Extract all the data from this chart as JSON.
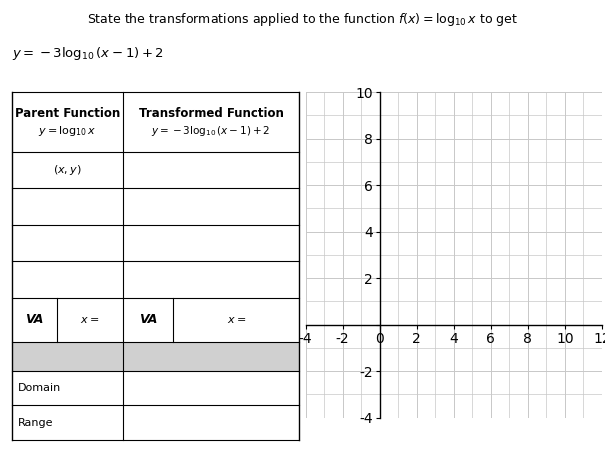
{
  "title_line1": "State the transformations applied to the function $f(x) = \\log_{10} x$ to get",
  "title_line2": "$y = -3\\log_{10}(x - 1) + 2$",
  "parent_header": "Parent Function",
  "parent_func": "$y = \\log_{10}x$",
  "transformed_header": "Transformed Function",
  "transformed_func": "$y = -3\\log_{10}(x - 1) + 2$",
  "xy_label": "$(x, y)$",
  "va_label": "VA",
  "x_equals": "$x = $",
  "domain_label": "Domain",
  "range_label": "Range",
  "grid_color": "#c8c8c8",
  "table_bg": "#ffffff",
  "shaded_row_bg": "#d0d0d0",
  "xlim": [
    -4,
    12
  ],
  "ylim": [
    -4,
    10
  ],
  "xticks": [
    -4,
    -2,
    0,
    2,
    4,
    6,
    8,
    10,
    12
  ],
  "yticks": [
    -4,
    -2,
    0,
    2,
    4,
    6,
    8,
    10
  ],
  "title_fontsize": 9.0,
  "subtitle_fontsize": 9.5,
  "table_fontsize": 8.0,
  "header_fontsize": 8.5,
  "va_fontsize": 9.0,
  "tick_fontsize": 7.5
}
